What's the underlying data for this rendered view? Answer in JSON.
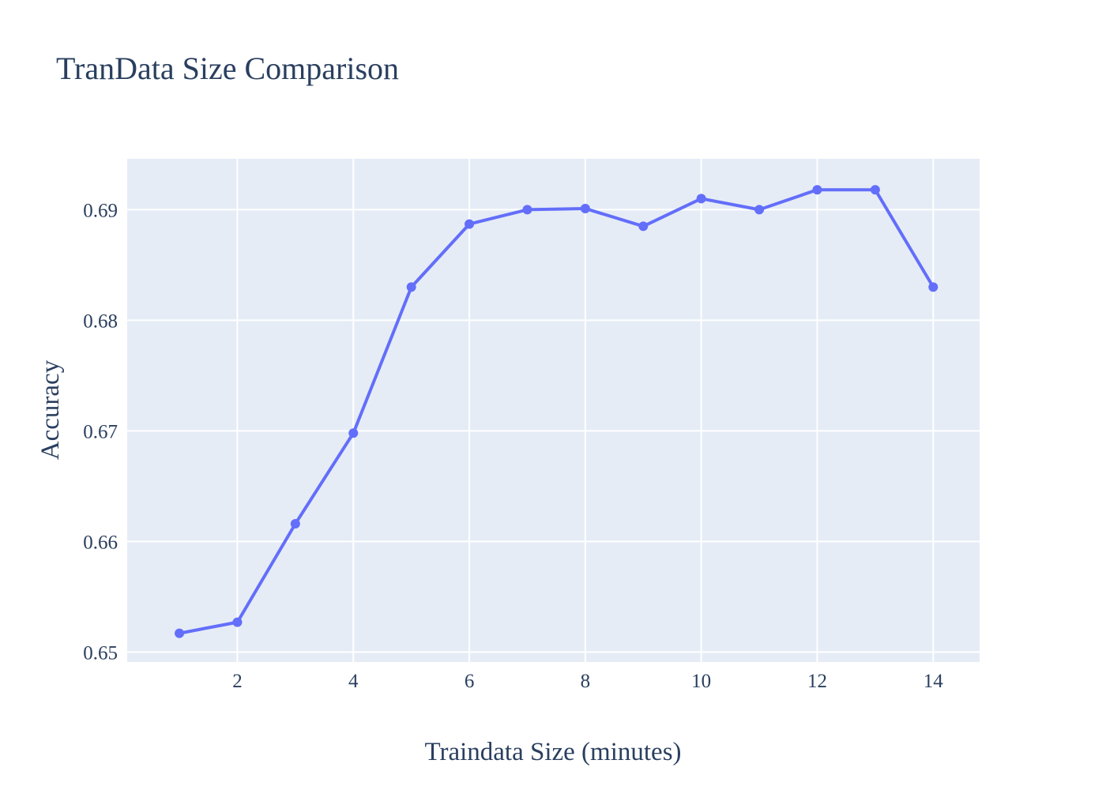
{
  "chart_data": {
    "type": "line",
    "title": "TranData Size Comparison",
    "xlabel": "Traindata Size (minutes)",
    "ylabel": "Accuracy",
    "xlim": [
      0.1,
      14.8
    ],
    "ylim": [
      0.6491,
      0.6946
    ],
    "xticks": [
      2,
      4,
      6,
      8,
      10,
      12,
      14
    ],
    "xtick_labels": [
      "2",
      "4",
      "6",
      "8",
      "10",
      "12",
      "14"
    ],
    "yticks": [
      0.65,
      0.66,
      0.67,
      0.68,
      0.69
    ],
    "ytick_labels": [
      "0.65",
      "0.66",
      "0.67",
      "0.68",
      "0.69"
    ],
    "grid": true,
    "legend": false,
    "series": [
      {
        "color": "#636efa",
        "x": [
          1,
          2,
          3,
          4,
          5,
          6,
          7,
          8,
          9,
          10,
          11,
          12,
          13,
          14
        ],
        "y": [
          0.6517,
          0.6527,
          0.6616,
          0.6698,
          0.683,
          0.6887,
          0.69,
          0.6901,
          0.6885,
          0.691,
          0.69,
          0.6918,
          0.6918,
          0.683
        ]
      }
    ]
  }
}
